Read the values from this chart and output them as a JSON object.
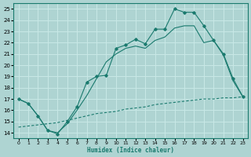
{
  "xlabel": "Humidex (Indice chaleur)",
  "xlim": [
    -0.5,
    23.5
  ],
  "ylim": [
    13.5,
    25.5
  ],
  "xticks": [
    0,
    1,
    2,
    3,
    4,
    5,
    6,
    7,
    8,
    9,
    10,
    11,
    12,
    13,
    14,
    15,
    16,
    17,
    18,
    19,
    20,
    21,
    22,
    23
  ],
  "yticks": [
    14,
    15,
    16,
    17,
    18,
    19,
    20,
    21,
    22,
    23,
    24,
    25
  ],
  "background_color": "#aed4d2",
  "grid_color": "#c8e8e6",
  "line_color": "#1a7a6e",
  "line1_x": [
    0,
    1,
    2,
    3,
    4,
    5,
    6,
    7,
    8,
    9,
    10,
    11,
    12,
    13,
    14,
    15,
    16,
    17,
    18,
    19,
    20,
    21,
    22,
    23
  ],
  "line1_y": [
    17.0,
    16.6,
    15.5,
    14.2,
    13.9,
    15.0,
    16.3,
    18.5,
    19.0,
    19.1,
    21.5,
    21.8,
    22.3,
    21.9,
    23.2,
    23.2,
    25.0,
    24.7,
    24.7,
    23.5,
    22.2,
    21.0,
    18.8,
    17.2
  ],
  "line2_x": [
    0,
    1,
    2,
    3,
    4,
    5,
    6,
    7,
    8,
    9,
    10,
    11,
    12,
    13,
    14,
    15,
    16,
    17,
    18,
    19,
    20,
    21,
    22,
    23
  ],
  "line2_y": [
    17.0,
    16.6,
    15.5,
    14.2,
    14.0,
    14.8,
    16.0,
    17.3,
    18.8,
    20.3,
    21.0,
    21.5,
    21.7,
    21.5,
    22.2,
    22.5,
    23.3,
    23.5,
    23.5,
    22.0,
    22.2,
    20.9,
    18.6,
    17.2
  ],
  "line3_x": [
    0,
    1,
    2,
    3,
    4,
    5,
    6,
    7,
    8,
    9,
    10,
    11,
    12,
    13,
    14,
    15,
    16,
    17,
    18,
    19,
    20,
    21,
    22,
    23
  ],
  "line3_y": [
    14.5,
    14.6,
    14.7,
    14.8,
    14.9,
    15.1,
    15.3,
    15.5,
    15.7,
    15.8,
    15.9,
    16.1,
    16.2,
    16.3,
    16.5,
    16.6,
    16.7,
    16.8,
    16.9,
    17.0,
    17.0,
    17.1,
    17.1,
    17.2
  ]
}
